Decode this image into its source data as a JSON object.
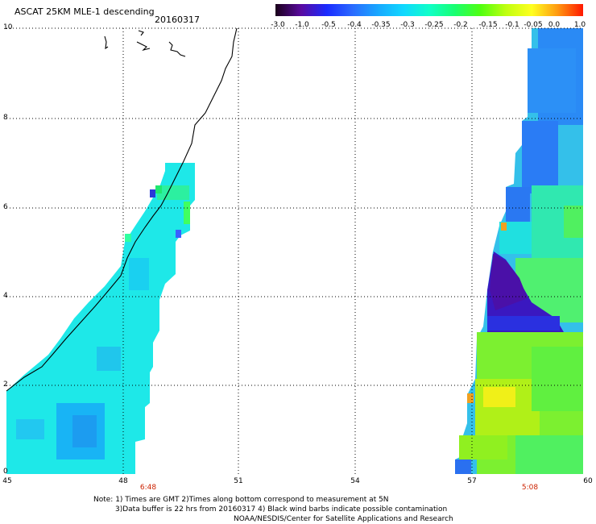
{
  "header": {
    "title": "ASCAT 25KM MLE-1 descending",
    "date": "20160317"
  },
  "colorbar": {
    "labels": [
      "-3.0",
      "-1.0",
      "-0.5",
      "-0.4",
      "-0.35",
      "-0.3",
      "-0.25",
      "-0.2",
      "-0.15",
      "-0.1",
      "-0.05",
      "0.0",
      "1.0"
    ],
    "colors": [
      "#1a001a",
      "#5a0aa0",
      "#1a2aff",
      "#2a6aff",
      "#18a8ff",
      "#10d8ff",
      "#10ffc8",
      "#18ff70",
      "#50ff10",
      "#c0ff10",
      "#ffff20",
      "#ff9a10",
      "#ff1800"
    ]
  },
  "map": {
    "y_ticks": [
      "0",
      "2",
      "4",
      "6",
      "8",
      "10"
    ],
    "x_ticks": [
      "45",
      "48",
      "51",
      "54",
      "57",
      "60"
    ],
    "pass_times": [
      "6:48",
      "5:08"
    ]
  },
  "notes": {
    "line1": "Note: 1) Times are GMT 2)Times along bottom correspond to measurement at 5N",
    "line2": "3)Data buffer is 22 hrs from 20160317 4) Black wind barbs indicate possible contamination",
    "line3": "NOAA/NESDIS/Center for Satellite Applications and Research"
  }
}
